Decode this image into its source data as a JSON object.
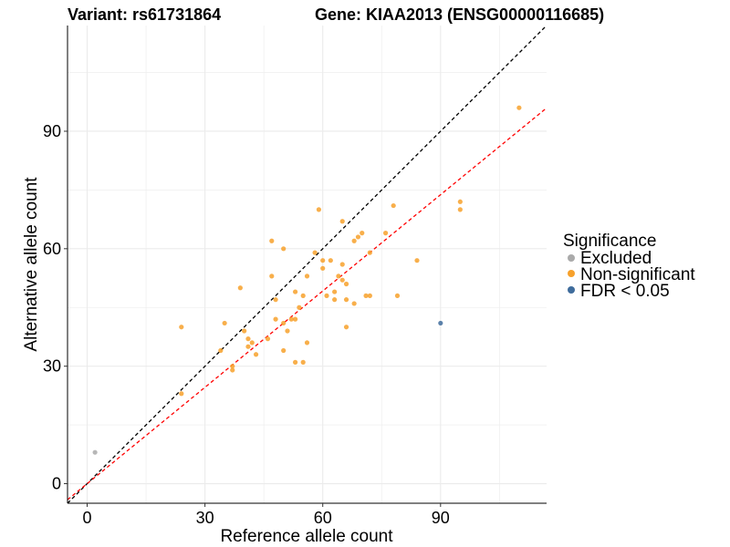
{
  "title_left": "Variant: rs61731864",
  "title_right": "Gene: KIAA2013 (ENSG00000116685)",
  "colors": {
    "excluded": "#aaaaaa",
    "non_significant": "#f7a12b",
    "significant": "#3f6c9c",
    "identity_line": "#000000",
    "fit_line": "#ff0000",
    "grid": "#ebebeb"
  },
  "chart_data": {
    "type": "scatter",
    "title": "",
    "xlabel": "Reference allele count",
    "ylabel": "Alternative allele count",
    "xlim": [
      -5,
      117
    ],
    "ylim": [
      -5,
      117
    ],
    "xticks": [
      0,
      30,
      60,
      90
    ],
    "yticks": [
      0,
      30,
      60,
      90
    ],
    "grid": true,
    "legend": {
      "title": "Significance",
      "position": "right",
      "entries": [
        {
          "label": "Excluded",
          "color_key": "excluded"
        },
        {
          "label": "Non-significant",
          "color_key": "non_significant"
        },
        {
          "label": "FDR < 0.05",
          "color_key": "significant"
        }
      ]
    },
    "reference_lines": [
      {
        "type": "identity",
        "style": "dashed",
        "color_key": "identity_line",
        "slope": 1,
        "intercept": 0
      },
      {
        "type": "fit",
        "style": "dashed",
        "color_key": "fit_line",
        "slope": 0.82,
        "intercept": 0
      }
    ],
    "series": [
      {
        "name": "Excluded",
        "color_key": "excluded",
        "points": [
          [
            2,
            8
          ]
        ]
      },
      {
        "name": "Non-significant",
        "color_key": "non_significant",
        "points": [
          [
            24,
            40
          ],
          [
            24,
            23
          ],
          [
            34,
            34
          ],
          [
            35,
            41
          ],
          [
            37,
            30
          ],
          [
            37,
            29
          ],
          [
            39,
            50
          ],
          [
            40,
            39
          ],
          [
            41,
            37
          ],
          [
            41,
            35
          ],
          [
            42,
            36
          ],
          [
            43,
            33
          ],
          [
            46,
            37
          ],
          [
            47,
            62
          ],
          [
            47,
            53
          ],
          [
            48,
            47
          ],
          [
            48,
            42
          ],
          [
            50,
            60
          ],
          [
            50,
            41
          ],
          [
            50,
            34
          ],
          [
            51,
            39
          ],
          [
            52,
            42
          ],
          [
            53,
            42
          ],
          [
            53,
            49
          ],
          [
            53,
            31
          ],
          [
            54,
            45
          ],
          [
            55,
            31
          ],
          [
            55,
            48
          ],
          [
            56,
            53
          ],
          [
            56,
            36
          ],
          [
            58,
            59
          ],
          [
            59,
            70
          ],
          [
            60,
            57
          ],
          [
            60,
            55
          ],
          [
            61,
            48
          ],
          [
            62,
            57
          ],
          [
            63,
            49
          ],
          [
            63,
            47
          ],
          [
            64,
            53
          ],
          [
            65,
            56
          ],
          [
            65,
            52
          ],
          [
            65,
            67
          ],
          [
            66,
            51
          ],
          [
            66,
            47
          ],
          [
            66,
            40
          ],
          [
            68,
            62
          ],
          [
            68,
            46
          ],
          [
            69,
            63
          ],
          [
            70,
            64
          ],
          [
            71,
            48
          ],
          [
            72,
            59
          ],
          [
            72,
            48
          ],
          [
            76,
            64
          ],
          [
            78,
            71
          ],
          [
            79,
            48
          ],
          [
            84,
            57
          ],
          [
            95,
            72
          ],
          [
            95,
            70
          ],
          [
            110,
            96
          ]
        ]
      },
      {
        "name": "FDR < 0.05",
        "color_key": "significant",
        "points": [
          [
            90,
            41
          ]
        ]
      }
    ]
  }
}
